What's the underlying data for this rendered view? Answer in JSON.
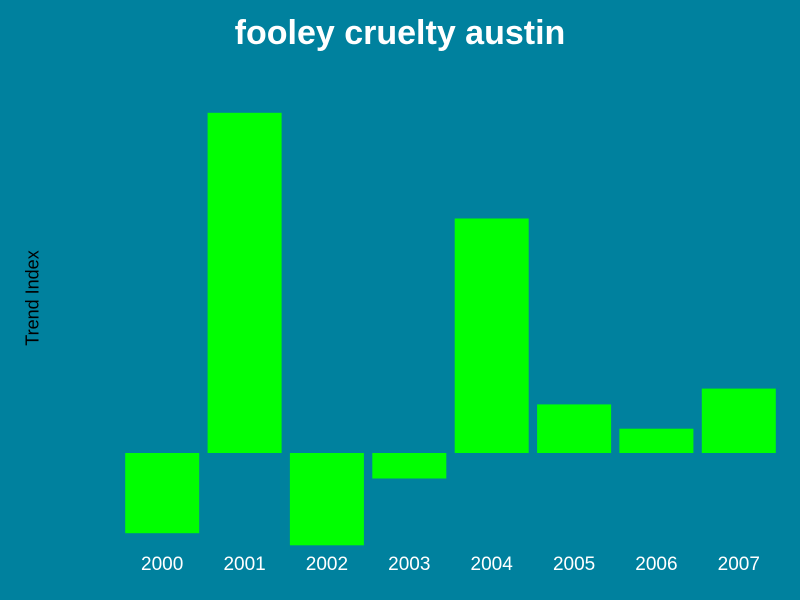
{
  "chart_data": {
    "type": "bar",
    "title": "fooley cruelty austin",
    "xlabel": "",
    "ylabel": "Trend Index",
    "categories": [
      "2000",
      "2001",
      "2002",
      "2003",
      "2004",
      "2005",
      "2006",
      "2007"
    ],
    "values": [
      -3.3,
      14.0,
      -3.8,
      -1.05,
      9.65,
      2.0,
      1.0,
      2.65
    ],
    "ylim": [
      -4,
      14.7
    ],
    "grid": false,
    "colors": {
      "background": "#00819e",
      "bar": "#00ff00",
      "title": "#ffffff",
      "tick": "#ffffff",
      "ylabel": "#000000"
    }
  }
}
